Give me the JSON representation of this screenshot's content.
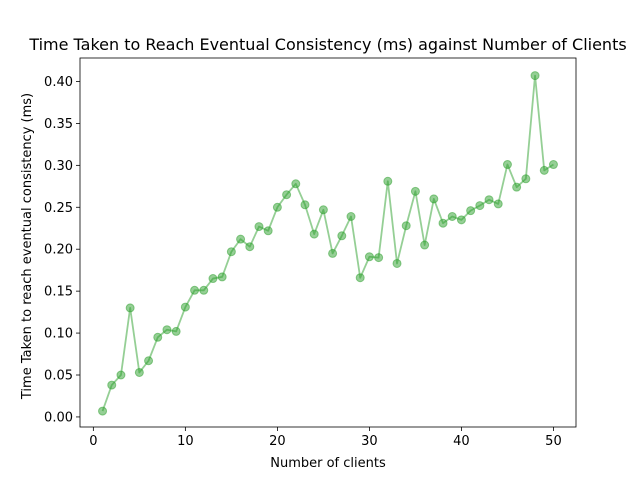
{
  "chart_data": {
    "type": "line",
    "title": "Time Taken to Reach Eventual Consistency (ms) against Number of Clients",
    "xlabel": "Number of clients",
    "ylabel": "Time Taken to reach eventual consistency (ms)",
    "xlim": [
      -1.45,
      52.45
    ],
    "ylim": [
      -0.012,
      0.428
    ],
    "xticks": [
      0,
      10,
      20,
      30,
      40,
      50
    ],
    "xtick_labels": [
      "0",
      "10",
      "20",
      "30",
      "40",
      "50"
    ],
    "yticks": [
      0.0,
      0.05,
      0.1,
      0.15,
      0.2,
      0.25,
      0.3,
      0.35,
      0.4
    ],
    "ytick_labels": [
      "0.00",
      "0.05",
      "0.10",
      "0.15",
      "0.20",
      "0.25",
      "0.30",
      "0.35",
      "0.40"
    ],
    "grid": false,
    "color": "#2ca02c",
    "series": [
      {
        "x": [
          1,
          2,
          3,
          4,
          5,
          6,
          7,
          8,
          9,
          10,
          11,
          12,
          13,
          14,
          15,
          16,
          17,
          18,
          19,
          20,
          21,
          22,
          23,
          24,
          25,
          26,
          27,
          28,
          29,
          30,
          31,
          32,
          33,
          34,
          35,
          36,
          37,
          38,
          39,
          40,
          41,
          42,
          43,
          44,
          45,
          46,
          47,
          48,
          49,
          50
        ],
        "values": [
          0.007,
          0.038,
          0.05,
          0.13,
          0.053,
          0.067,
          0.095,
          0.104,
          0.102,
          0.131,
          0.151,
          0.151,
          0.165,
          0.167,
          0.197,
          0.212,
          0.203,
          0.227,
          0.222,
          0.25,
          0.265,
          0.278,
          0.253,
          0.218,
          0.247,
          0.195,
          0.216,
          0.239,
          0.166,
          0.191,
          0.19,
          0.281,
          0.183,
          0.228,
          0.269,
          0.205,
          0.26,
          0.231,
          0.239,
          0.235,
          0.246,
          0.252,
          0.259,
          0.254,
          0.301,
          0.274,
          0.284,
          0.407,
          0.294,
          0.301
        ]
      }
    ]
  }
}
